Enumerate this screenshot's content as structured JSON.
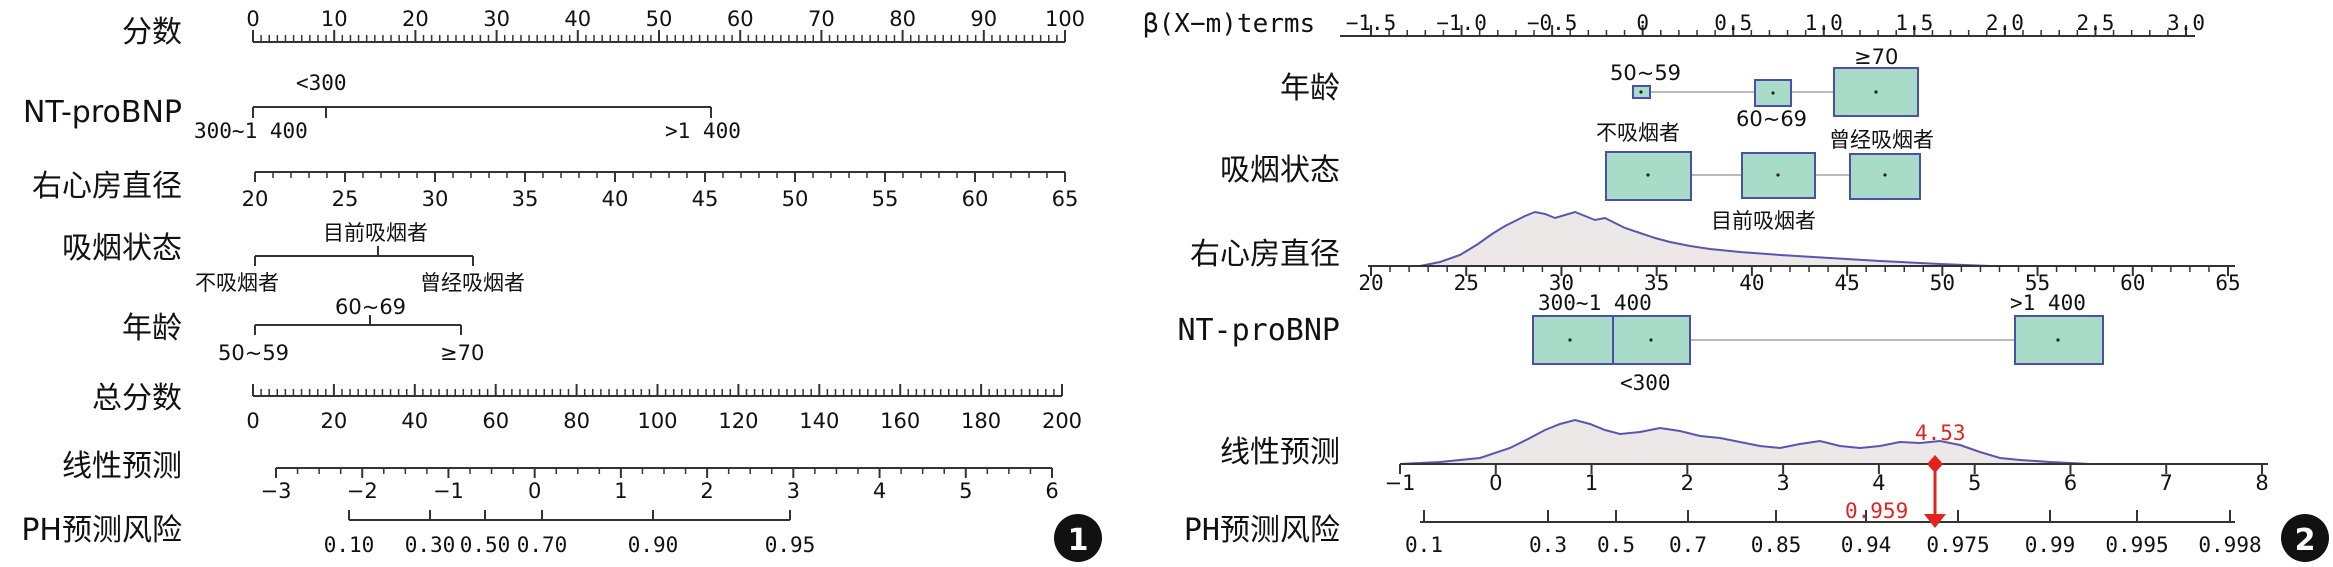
{
  "panel1": {
    "badge": "1",
    "rows": [
      {
        "key": "points",
        "label": "分数"
      },
      {
        "key": "ntprobnp",
        "label": "NT-proBNP"
      },
      {
        "key": "ra",
        "label": "右心房直径"
      },
      {
        "key": "smoke",
        "label": "吸烟状态"
      },
      {
        "key": "age",
        "label": "年龄"
      },
      {
        "key": "total",
        "label": "总分数"
      },
      {
        "key": "lp",
        "label": "线性预测"
      },
      {
        "key": "risk",
        "label": "PH预测风险"
      }
    ],
    "points_ticks": [
      "0",
      "10",
      "20",
      "30",
      "40",
      "50",
      "60",
      "70",
      "80",
      "90",
      "100"
    ],
    "ntprobnp": {
      "above": "<300",
      "left": "300~1 400",
      "right": ">1 400"
    },
    "ra_ticks": [
      "20",
      "25",
      "30",
      "35",
      "40",
      "45",
      "50",
      "55",
      "60",
      "65"
    ],
    "smoke": {
      "above": "目前吸烟者",
      "left": "不吸烟者",
      "right": "曾经吸烟者"
    },
    "age": {
      "above": "60~69",
      "left": "50~59",
      "right": "≥70"
    },
    "total_ticks": [
      "0",
      "20",
      "40",
      "60",
      "80",
      "100",
      "120",
      "140",
      "160",
      "180",
      "200"
    ],
    "lp_ticks": [
      "−3",
      "−2",
      "−1",
      "0",
      "1",
      "2",
      "3",
      "4",
      "5",
      "6"
    ],
    "risk_ticks": [
      "0.10",
      "0.30",
      "0.50",
      "0.70",
      "0.90",
      "0.95"
    ]
  },
  "panel2": {
    "badge": "2",
    "axis_title": "β(X−m)terms",
    "beta_ticks": [
      "−1.5",
      "−1.0",
      "−0.5",
      "0",
      "0.5",
      "1.0",
      "1.5",
      "2.0",
      "2.5",
      "3.0"
    ],
    "labels": {
      "age": "年龄",
      "smoke": "吸烟状态",
      "ra": "右心房直径",
      "ntprobnp": "NT-proBNP",
      "lp": "线性预测",
      "risk": "PH预测风险"
    },
    "age_levels": [
      "50~59",
      "60~69",
      "≥70"
    ],
    "smoke_levels": [
      "不吸烟者",
      "目前吸烟者",
      "曾经吸烟者"
    ],
    "ra_ticks": [
      "20",
      "25",
      "30",
      "35",
      "40",
      "45",
      "50",
      "55",
      "60",
      "65"
    ],
    "ntprobnp_levels": [
      "300~1 400",
      "<300",
      ">1 400"
    ],
    "lp_ticks": [
      "−1",
      "0",
      "1",
      "2",
      "3",
      "4",
      "5",
      "6",
      "7",
      "8"
    ],
    "risk_ticks": [
      "0.1",
      "0.3",
      "0.5",
      "0.7",
      "0.85",
      "0.94",
      "0.975",
      "0.99",
      "0.995",
      "0.998"
    ],
    "lp_value": "4.53",
    "risk_value": "0.959",
    "colors": {
      "box_fill": "#a8dcc8",
      "box_stroke": "#4a4fa8",
      "density": "#5a55b0",
      "highlight": "#e52222"
    }
  }
}
